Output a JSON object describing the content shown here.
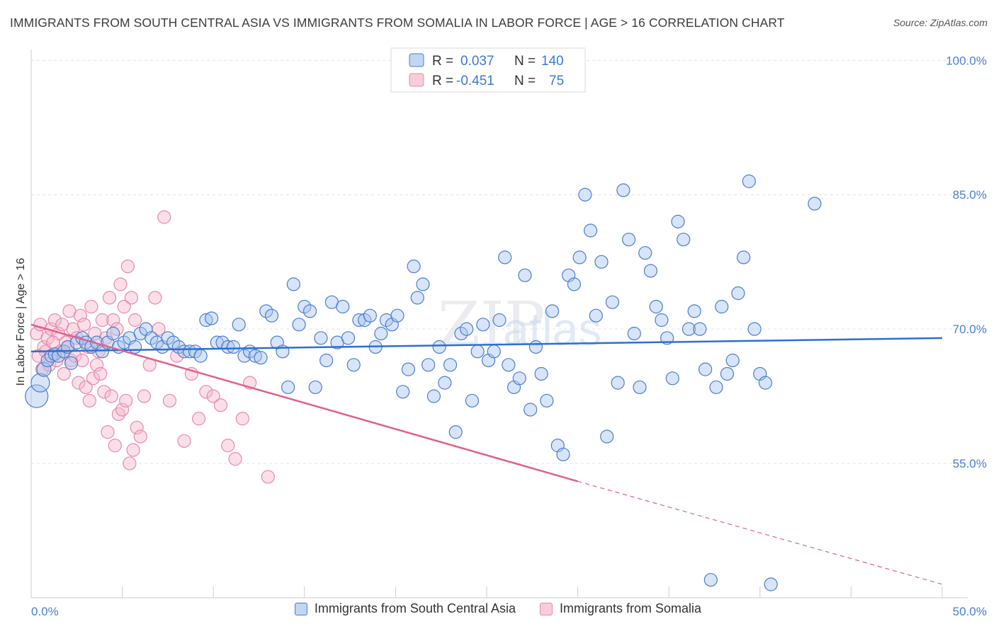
{
  "header": {
    "title": "IMMIGRANTS FROM SOUTH CENTRAL ASIA VS IMMIGRANTS FROM SOMALIA IN LABOR FORCE | AGE > 16 CORRELATION CHART",
    "source": "Source: ZipAtlas.com"
  },
  "watermark": {
    "zip": "ZIP",
    "atlas": "atlas"
  },
  "colors": {
    "blue": "#4a7fd0",
    "blue_fill": "#a8c4ee",
    "blue_line": "#2d6fd1",
    "pink": "#e88aa8",
    "pink_fill": "#f5b8cb",
    "pink_line": "#e0608a"
  },
  "legend": {
    "rows": [
      {
        "r_label": "R =",
        "r_value": "0.037",
        "n_label": "N =",
        "n_value": "140"
      },
      {
        "r_label": "R =",
        "r_value": "-0.451",
        "n_label": "N =",
        "n_value": "75"
      }
    ]
  },
  "chart_data": {
    "type": "scatter",
    "title": "IMMIGRANTS FROM SOUTH CENTRAL ASIA VS IMMIGRANTS FROM SOMALIA IN LABOR FORCE | AGE > 16 CORRELATION CHART",
    "xlabel": "",
    "ylabel": "In Labor Force | Age > 16",
    "xlim": [
      0,
      50
    ],
    "ylim": [
      40,
      102
    ],
    "x_tick_labels": [
      "0.0%",
      "50.0%"
    ],
    "y_ticks": [
      55,
      70,
      85,
      100
    ],
    "y_tick_labels": [
      "55.0%",
      "70.0%",
      "85.0%",
      "100.0%"
    ],
    "grid": true,
    "series": [
      {
        "name": "Immigrants from South Central Asia",
        "trend": {
          "x0": 0,
          "y0": 67.5,
          "x1": 50,
          "y1": 69.0
        },
        "points": [
          [
            0.3,
            62.5,
            16
          ],
          [
            0.5,
            64.0,
            13
          ],
          [
            0.7,
            65.5,
            10
          ],
          [
            0.9,
            66.5,
            9
          ],
          [
            1.1,
            67.0,
            9
          ],
          [
            1.3,
            67.2,
            9
          ],
          [
            1.5,
            67.0,
            9
          ],
          [
            1.8,
            67.5,
            9
          ],
          [
            2.0,
            68.0,
            9
          ],
          [
            2.2,
            66.2,
            9
          ],
          [
            2.5,
            68.5,
            9
          ],
          [
            2.8,
            69.0,
            9
          ],
          [
            3.0,
            68.5,
            9
          ],
          [
            3.3,
            68.0,
            9
          ],
          [
            3.6,
            68.5,
            9
          ],
          [
            3.9,
            67.5,
            9
          ],
          [
            4.2,
            68.5,
            9
          ],
          [
            4.5,
            69.5,
            9
          ],
          [
            4.8,
            68.0,
            9
          ],
          [
            5.1,
            68.5,
            9
          ],
          [
            5.4,
            69.0,
            9
          ],
          [
            5.7,
            68.0,
            9
          ],
          [
            6.0,
            69.5,
            9
          ],
          [
            6.3,
            70.0,
            9
          ],
          [
            6.6,
            69.0,
            9
          ],
          [
            6.9,
            68.5,
            9
          ],
          [
            7.2,
            68.0,
            9
          ],
          [
            7.5,
            69.0,
            9
          ],
          [
            7.8,
            68.5,
            9
          ],
          [
            8.1,
            68.0,
            9
          ],
          [
            8.4,
            67.5,
            9
          ],
          [
            8.7,
            67.5,
            9
          ],
          [
            9.0,
            67.5,
            9
          ],
          [
            9.3,
            67.0,
            9
          ],
          [
            9.6,
            71.0,
            9
          ],
          [
            9.9,
            71.2,
            9
          ],
          [
            10.2,
            68.5,
            9
          ],
          [
            10.5,
            68.5,
            9
          ],
          [
            10.8,
            68.0,
            9
          ],
          [
            11.1,
            68.0,
            9
          ],
          [
            11.4,
            70.5,
            9
          ],
          [
            11.7,
            67.0,
            9
          ],
          [
            12.0,
            67.5,
            9
          ],
          [
            12.3,
            67.0,
            9
          ],
          [
            12.6,
            66.8,
            9
          ],
          [
            12.9,
            72.0,
            9
          ],
          [
            13.2,
            71.5,
            9
          ],
          [
            13.5,
            68.5,
            9
          ],
          [
            13.8,
            67.5,
            9
          ],
          [
            14.1,
            63.5,
            9
          ],
          [
            14.4,
            75.0,
            9
          ],
          [
            14.7,
            70.5,
            9
          ],
          [
            15.0,
            72.5,
            9
          ],
          [
            15.3,
            72.0,
            9
          ],
          [
            15.6,
            63.5,
            9
          ],
          [
            15.9,
            69.0,
            9
          ],
          [
            16.2,
            66.5,
            9
          ],
          [
            16.5,
            73.0,
            9
          ],
          [
            16.8,
            68.5,
            9
          ],
          [
            17.1,
            72.5,
            9
          ],
          [
            17.4,
            69.0,
            9
          ],
          [
            17.7,
            66.0,
            9
          ],
          [
            18.0,
            71.0,
            9
          ],
          [
            18.3,
            71.0,
            9
          ],
          [
            18.6,
            71.5,
            9
          ],
          [
            18.9,
            68.0,
            9
          ],
          [
            19.2,
            69.5,
            9
          ],
          [
            19.5,
            71.0,
            9
          ],
          [
            19.8,
            70.5,
            9
          ],
          [
            20.1,
            71.5,
            9
          ],
          [
            20.4,
            63.0,
            9
          ],
          [
            20.7,
            65.5,
            9
          ],
          [
            21.0,
            77.0,
            9
          ],
          [
            21.2,
            73.5,
            9
          ],
          [
            21.5,
            75.0,
            9
          ],
          [
            21.8,
            66.0,
            9
          ],
          [
            22.1,
            62.5,
            9
          ],
          [
            22.4,
            68.0,
            9
          ],
          [
            22.7,
            64.0,
            9
          ],
          [
            23.0,
            66.0,
            9
          ],
          [
            23.3,
            58.5,
            9
          ],
          [
            23.6,
            69.5,
            9
          ],
          [
            23.9,
            70.0,
            9
          ],
          [
            24.2,
            62.0,
            9
          ],
          [
            24.5,
            67.5,
            9
          ],
          [
            24.8,
            70.5,
            9
          ],
          [
            25.1,
            66.5,
            9
          ],
          [
            25.4,
            67.5,
            9
          ],
          [
            25.7,
            71.0,
            9
          ],
          [
            26.0,
            78.0,
            9
          ],
          [
            26.2,
            66.0,
            9
          ],
          [
            26.5,
            63.5,
            9
          ],
          [
            26.8,
            64.5,
            9
          ],
          [
            27.1,
            76.0,
            9
          ],
          [
            27.4,
            61.0,
            9
          ],
          [
            27.7,
            68.0,
            9
          ],
          [
            28.0,
            65.0,
            9
          ],
          [
            28.3,
            62.0,
            9
          ],
          [
            28.6,
            72.0,
            9
          ],
          [
            28.9,
            57.0,
            9
          ],
          [
            29.2,
            56.0,
            9
          ],
          [
            29.5,
            76.0,
            9
          ],
          [
            29.8,
            75.0,
            9
          ],
          [
            30.1,
            78.0,
            9
          ],
          [
            30.4,
            85.0,
            9
          ],
          [
            30.7,
            81.0,
            9
          ],
          [
            31.0,
            71.5,
            9
          ],
          [
            31.3,
            77.5,
            9
          ],
          [
            31.6,
            58.0,
            9
          ],
          [
            31.9,
            73.0,
            9
          ],
          [
            32.2,
            64.0,
            9
          ],
          [
            32.5,
            85.5,
            9
          ],
          [
            32.8,
            80.0,
            9
          ],
          [
            33.1,
            69.5,
            9
          ],
          [
            33.4,
            63.5,
            9
          ],
          [
            33.7,
            78.5,
            9
          ],
          [
            34.0,
            76.5,
            9
          ],
          [
            34.3,
            72.5,
            9
          ],
          [
            34.6,
            71.0,
            9
          ],
          [
            34.9,
            69.0,
            9
          ],
          [
            35.2,
            64.5,
            9
          ],
          [
            35.5,
            82.0,
            9
          ],
          [
            35.8,
            80.0,
            9
          ],
          [
            36.1,
            70.0,
            9
          ],
          [
            36.4,
            72.0,
            9
          ],
          [
            36.7,
            70.0,
            9
          ],
          [
            37.0,
            65.5,
            9
          ],
          [
            37.3,
            42.0,
            9
          ],
          [
            37.6,
            63.5,
            9
          ],
          [
            37.9,
            72.5,
            9
          ],
          [
            38.2,
            65.0,
            9
          ],
          [
            38.5,
            66.5,
            9
          ],
          [
            38.8,
            74.0,
            9
          ],
          [
            39.1,
            78.0,
            9
          ],
          [
            39.4,
            86.5,
            9
          ],
          [
            39.7,
            70.0,
            9
          ],
          [
            40.0,
            65.0,
            9
          ],
          [
            40.3,
            64.0,
            9
          ],
          [
            40.6,
            41.5,
            9
          ],
          [
            43.0,
            84.0,
            9
          ]
        ]
      },
      {
        "name": "Immigrants from Somalia",
        "trend": {
          "x0": 0,
          "y0": 70.5,
          "x1": 30,
          "y1": 53.0,
          "dash_to_x": 50,
          "dash_to_y": 41.5
        },
        "points": [
          [
            0.3,
            69.5,
            9
          ],
          [
            0.5,
            70.5,
            9
          ],
          [
            0.7,
            68.0,
            9
          ],
          [
            0.9,
            69.0,
            9
          ],
          [
            1.1,
            70.0,
            9
          ],
          [
            1.3,
            71.0,
            9
          ],
          [
            1.5,
            69.5,
            9
          ],
          [
            1.7,
            70.5,
            9
          ],
          [
            1.9,
            68.5,
            9
          ],
          [
            2.1,
            72.0,
            9
          ],
          [
            2.3,
            70.0,
            9
          ],
          [
            2.5,
            69.0,
            9
          ],
          [
            2.7,
            71.5,
            9
          ],
          [
            2.9,
            70.5,
            9
          ],
          [
            3.1,
            68.0,
            9
          ],
          [
            3.3,
            72.5,
            9
          ],
          [
            3.5,
            69.5,
            9
          ],
          [
            3.7,
            67.5,
            9
          ],
          [
            3.9,
            71.0,
            9
          ],
          [
            4.1,
            69.0,
            9
          ],
          [
            4.3,
            73.5,
            9
          ],
          [
            4.5,
            71.0,
            9
          ],
          [
            4.7,
            70.0,
            9
          ],
          [
            4.9,
            75.0,
            9
          ],
          [
            5.1,
            72.5,
            9
          ],
          [
            5.3,
            77.0,
            9
          ],
          [
            5.5,
            73.5,
            9
          ],
          [
            5.7,
            71.0,
            9
          ],
          [
            0.4,
            67.0,
            9
          ],
          [
            0.6,
            65.5,
            9
          ],
          [
            0.8,
            67.5,
            9
          ],
          [
            1.0,
            66.0,
            9
          ],
          [
            1.2,
            68.5,
            9
          ],
          [
            1.4,
            66.5,
            9
          ],
          [
            1.6,
            67.5,
            9
          ],
          [
            1.8,
            65.0,
            9
          ],
          [
            2.0,
            68.0,
            9
          ],
          [
            2.2,
            66.5,
            9
          ],
          [
            2.4,
            67.0,
            9
          ],
          [
            2.6,
            64.0,
            9
          ],
          [
            2.8,
            66.5,
            9
          ],
          [
            3.0,
            63.5,
            9
          ],
          [
            3.2,
            62.0,
            9
          ],
          [
            3.4,
            64.5,
            9
          ],
          [
            3.6,
            66.0,
            9
          ],
          [
            3.8,
            65.0,
            9
          ],
          [
            4.0,
            63.0,
            9
          ],
          [
            4.2,
            58.5,
            9
          ],
          [
            4.4,
            62.5,
            9
          ],
          [
            4.6,
            57.0,
            9
          ],
          [
            4.8,
            60.5,
            9
          ],
          [
            5.0,
            61.0,
            9
          ],
          [
            5.2,
            62.0,
            9
          ],
          [
            5.4,
            55.0,
            9
          ],
          [
            5.6,
            56.5,
            9
          ],
          [
            5.8,
            59.0,
            9
          ],
          [
            6.0,
            58.0,
            9
          ],
          [
            6.2,
            62.5,
            9
          ],
          [
            6.5,
            66.0,
            9
          ],
          [
            6.8,
            73.5,
            9
          ],
          [
            7.0,
            70.0,
            9
          ],
          [
            7.3,
            82.5,
            9
          ],
          [
            7.6,
            62.0,
            9
          ],
          [
            8.0,
            67.0,
            9
          ],
          [
            8.4,
            57.5,
            9
          ],
          [
            8.8,
            65.0,
            9
          ],
          [
            9.2,
            60.0,
            9
          ],
          [
            9.6,
            63.0,
            9
          ],
          [
            10.0,
            62.5,
            9
          ],
          [
            10.4,
            61.5,
            9
          ],
          [
            10.8,
            57.0,
            9
          ],
          [
            11.2,
            55.5,
            9
          ],
          [
            11.6,
            60.0,
            9
          ],
          [
            12.0,
            64.0,
            9
          ],
          [
            13.0,
            53.5,
            9
          ]
        ]
      }
    ]
  },
  "bottom_legend": [
    {
      "label": "Immigrants from South Central Asia"
    },
    {
      "label": "Immigrants from Somalia"
    }
  ]
}
